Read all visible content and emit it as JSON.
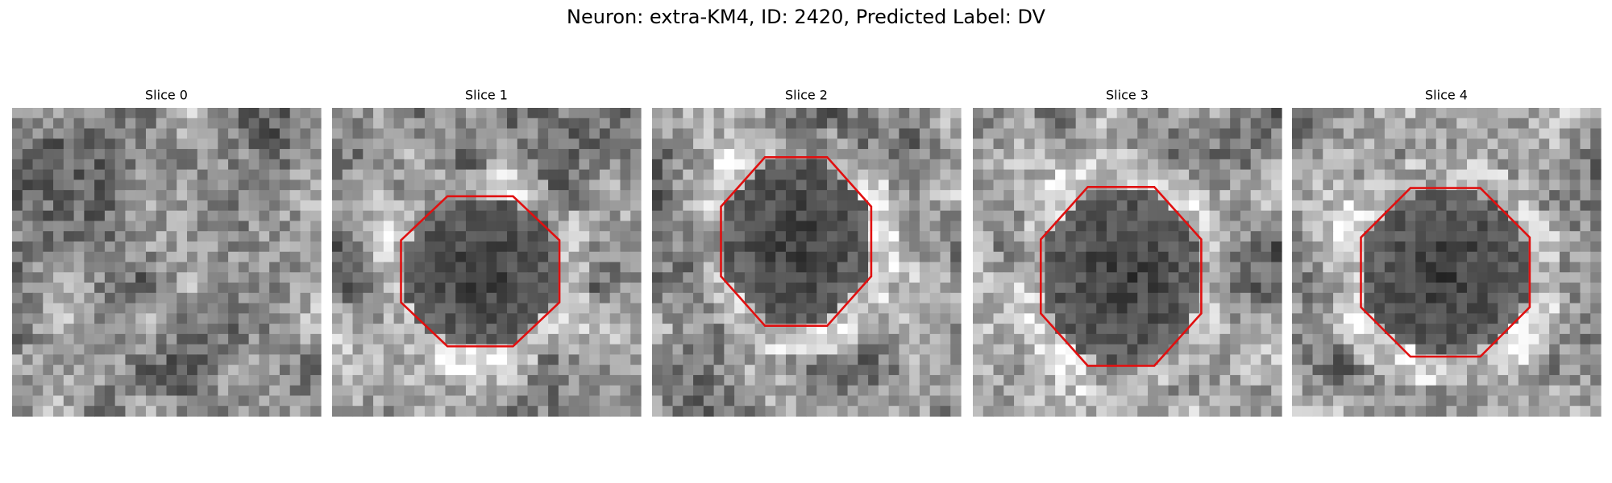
{
  "title": "Neuron: extra-KM4, ID: 2420, Predicted Label: DV",
  "panels": [
    {
      "title": "Slice 0"
    },
    {
      "title": "Slice 1"
    },
    {
      "title": "Slice 2"
    },
    {
      "title": "Slice 3"
    },
    {
      "title": "Slice 4"
    }
  ]
}
